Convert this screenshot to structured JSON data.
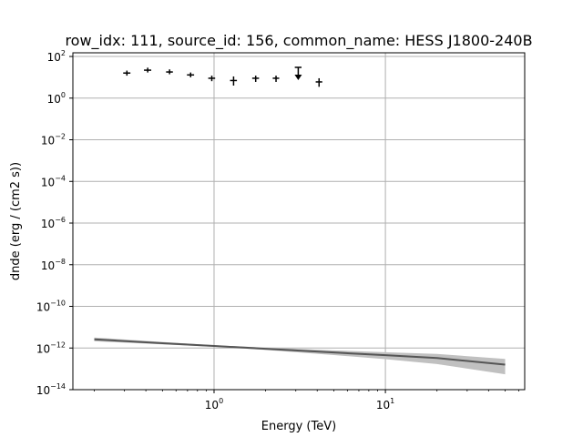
{
  "chart_data": {
    "type": "scatter",
    "title": "row_idx: 111, source_id: 156, common_name: HESS J1800-240B",
    "xlabel": "Energy (TeV)",
    "ylabel": "dnde (erg / (cm2 s))",
    "xscale": "log",
    "yscale": "log",
    "xlim": [
      0.15,
      65
    ],
    "ylim": [
      1e-14,
      150
    ],
    "grid": true,
    "x_ticks": [
      {
        "value": 1,
        "base": "10",
        "exp": "0"
      },
      {
        "value": 10,
        "base": "10",
        "exp": "1"
      }
    ],
    "y_ticks": [
      {
        "value": 100,
        "base": "10",
        "exp": "2"
      },
      {
        "value": 1,
        "base": "10",
        "exp": "0"
      },
      {
        "value": 0.01,
        "base": "10",
        "exp": "−2"
      },
      {
        "value": 0.0001,
        "base": "10",
        "exp": "−4"
      },
      {
        "value": 1e-06,
        "base": "10",
        "exp": "−6"
      },
      {
        "value": 1e-08,
        "base": "10",
        "exp": "−8"
      },
      {
        "value": 1e-10,
        "base": "10",
        "exp": "−10"
      },
      {
        "value": 1e-12,
        "base": "10",
        "exp": "−12"
      },
      {
        "value": 1e-14,
        "base": "10",
        "exp": "−14"
      }
    ],
    "series": [
      {
        "kind": "flux_points",
        "color": "#000000",
        "points": [
          {
            "x": 0.31,
            "y": 16,
            "xerr_lo": 0.015,
            "xerr_hi": 0.015,
            "yerr_lo": 4,
            "yerr_hi": 5
          },
          {
            "x": 0.41,
            "y": 22,
            "xerr_lo": 0.02,
            "xerr_hi": 0.02,
            "yerr_lo": 5,
            "yerr_hi": 7
          },
          {
            "x": 0.55,
            "y": 18,
            "xerr_lo": 0.025,
            "xerr_hi": 0.025,
            "yerr_lo": 4,
            "yerr_hi": 6
          },
          {
            "x": 0.73,
            "y": 13,
            "xerr_lo": 0.035,
            "xerr_hi": 0.035,
            "yerr_lo": 3,
            "yerr_hi": 4
          },
          {
            "x": 0.97,
            "y": 9,
            "xerr_lo": 0.045,
            "xerr_hi": 0.045,
            "yerr_lo": 2.5,
            "yerr_hi": 3
          },
          {
            "x": 1.3,
            "y": 7,
            "xerr_lo": 0.06,
            "xerr_hi": 0.06,
            "yerr_lo": 3,
            "yerr_hi": 4
          },
          {
            "x": 1.75,
            "y": 9,
            "xerr_lo": 0.08,
            "xerr_hi": 0.08,
            "yerr_lo": 3,
            "yerr_hi": 3
          },
          {
            "x": 2.3,
            "y": 9,
            "xerr_lo": 0.1,
            "xerr_hi": 0.1,
            "yerr_lo": 3,
            "yerr_hi": 3
          },
          {
            "x": 4.1,
            "y": 6,
            "xerr_lo": 0.18,
            "xerr_hi": 0.18,
            "yerr_lo": 2.5,
            "yerr_hi": 3
          }
        ],
        "upper_limits": [
          {
            "x": 3.1,
            "y": 30,
            "xerr_lo": 0.14,
            "xerr_hi": 0.14
          }
        ]
      },
      {
        "kind": "spectral_model",
        "color": "#555555",
        "band_color": "#c0c0c0",
        "x": [
          0.2,
          0.5,
          1,
          2,
          5,
          10,
          20,
          50
        ],
        "y": [
          2.6e-12,
          1.7e-12,
          1.25e-12,
          9.2e-13,
          6.1e-13,
          4.5e-13,
          3.3e-13,
          1.6e-13
        ],
        "y_lo": [
          2.1e-12,
          1.5e-12,
          1.15e-12,
          8.1e-13,
          4.6e-13,
          2.9e-13,
          1.7e-13,
          5.5e-14
        ],
        "y_hi": [
          3.2e-12,
          1.95e-12,
          1.35e-12,
          1.05e-12,
          7.7e-13,
          6.3e-13,
          5.2e-13,
          3e-13
        ]
      }
    ]
  }
}
